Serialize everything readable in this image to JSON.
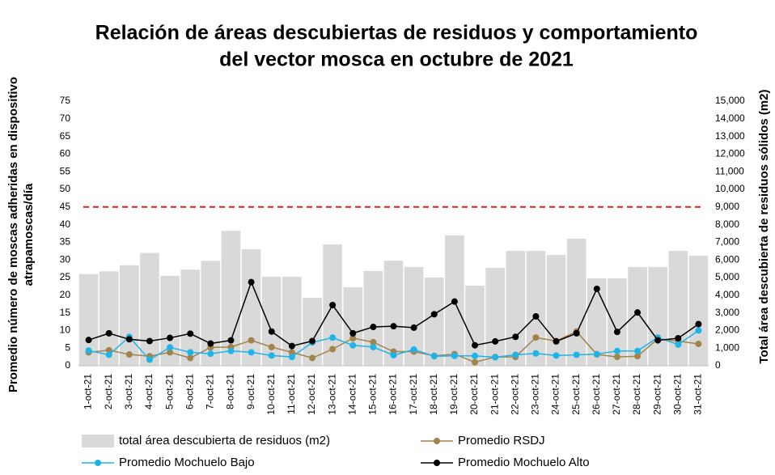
{
  "chart_data": {
    "type": "combo",
    "title": [
      "Relación de áreas descubiertas de residuos y comportamiento",
      "del vector mosca en octubre de 2021"
    ],
    "y_label": [
      "Promedio número de moscas adheridas en dispositivo",
      "atrapamoscas/día"
    ],
    "y2_label": "Total área descubierta de residuos sólidos (m2)",
    "categories": [
      "1-oct-21",
      "2-oct-21",
      "3-oct-21",
      "4-oct-21",
      "5-oct-21",
      "6-oct-21",
      "7-oct-21",
      "8-oct-21",
      "9-oct-21",
      "10-oct-21",
      "11-oct-21",
      "12-oct-21",
      "13-oct-21",
      "14-oct-21",
      "15-oct-21",
      "16-oct-21",
      "17-oct-21",
      "18-oct-21",
      "19-oct-21",
      "20-oct-21",
      "21-oct-21",
      "22-oct-21",
      "23-oct-21",
      "24-oct-21",
      "25-oct-21",
      "26-oct-21",
      "27-oct-21",
      "28-oct-21",
      "29-oct-21",
      "30-oct-21",
      "31-oct-21"
    ],
    "series": [
      {
        "name": "total área descubierta de residuos (m2)",
        "kind": "bar",
        "axis": "y2",
        "color": "#d9d9d9",
        "values": [
          5200,
          5350,
          5700,
          6400,
          5100,
          5450,
          5950,
          7650,
          6600,
          5050,
          5050,
          3850,
          6880,
          4450,
          5370,
          5960,
          5600,
          5000,
          7390,
          4540,
          5550,
          6510,
          6510,
          6280,
          7200,
          4950,
          4950,
          5600,
          5600,
          6510,
          6240
        ]
      },
      {
        "name": "Promedio RSDJ",
        "kind": "line",
        "color": "#a2834a",
        "values": [
          3.8,
          4.4,
          3.2,
          2.7,
          3.8,
          2.2,
          5.2,
          5.3,
          7.2,
          5.3,
          3.8,
          2.2,
          4.7,
          7.8,
          6.7,
          4,
          4,
          2.8,
          3.3,
          1,
          2.5,
          2.5,
          8,
          7,
          9.7,
          3.2,
          2.5,
          2.7,
          7.6,
          7,
          6.2
        ]
      },
      {
        "name": "Promedio Mochuelo Bajo",
        "kind": "line",
        "color": "#1fb4e8",
        "values": [
          4.3,
          3.1,
          8.2,
          1.7,
          5.2,
          3.8,
          3.4,
          4.2,
          3.8,
          2.9,
          2.5,
          6.6,
          8,
          5.8,
          5.3,
          3,
          4.6,
          2.7,
          2.8,
          2.8,
          2.4,
          3.1,
          3.5,
          2.9,
          3.1,
          3.3,
          4.2,
          4.2,
          8,
          6,
          10
        ]
      },
      {
        "name": "Promedio Mochuelo Alto",
        "kind": "line",
        "color": "#000000",
        "values": [
          7.3,
          9.2,
          7.5,
          7,
          7.9,
          9.1,
          6.3,
          7.2,
          23.7,
          9.7,
          5.6,
          7,
          17.2,
          9.2,
          11,
          11.2,
          10.8,
          14.6,
          18.2,
          5.8,
          6.9,
          8.2,
          14,
          6.9,
          9.2,
          21.8,
          9.6,
          15.1,
          7.2,
          7.8,
          11.8
        ]
      }
    ],
    "threshold": {
      "value": 45,
      "color": "#e0201c"
    },
    "ylim": [
      0,
      75
    ],
    "yticks": [
      0,
      5,
      10,
      15,
      20,
      25,
      30,
      35,
      40,
      45,
      50,
      55,
      60,
      65,
      70,
      75
    ],
    "y2lim": [
      0,
      15000
    ],
    "y2ticks": [
      0,
      {
        "value": 1000,
        "label": "1,000"
      },
      {
        "value": 2000,
        "label": "2,000"
      },
      {
        "value": 3000,
        "label": "3,000"
      },
      {
        "value": 4000,
        "label": "4,000"
      },
      {
        "value": 5000,
        "label": "5,000"
      },
      {
        "value": 6000,
        "label": "6,000"
      },
      {
        "value": 7000,
        "label": "7,000"
      },
      {
        "value": 8000,
        "label": "8,000"
      },
      {
        "value": 9000,
        "label": "9,000"
      },
      {
        "value": 10000,
        "label": "10,000"
      },
      {
        "value": 11000,
        "label": "11,000"
      },
      {
        "value": 12000,
        "label": "12,000"
      },
      {
        "value": 13000,
        "label": "13,000"
      },
      {
        "value": 14000,
        "label": "14,000"
      },
      {
        "value": 15000,
        "label": "15,000"
      }
    ],
    "grid": false
  }
}
